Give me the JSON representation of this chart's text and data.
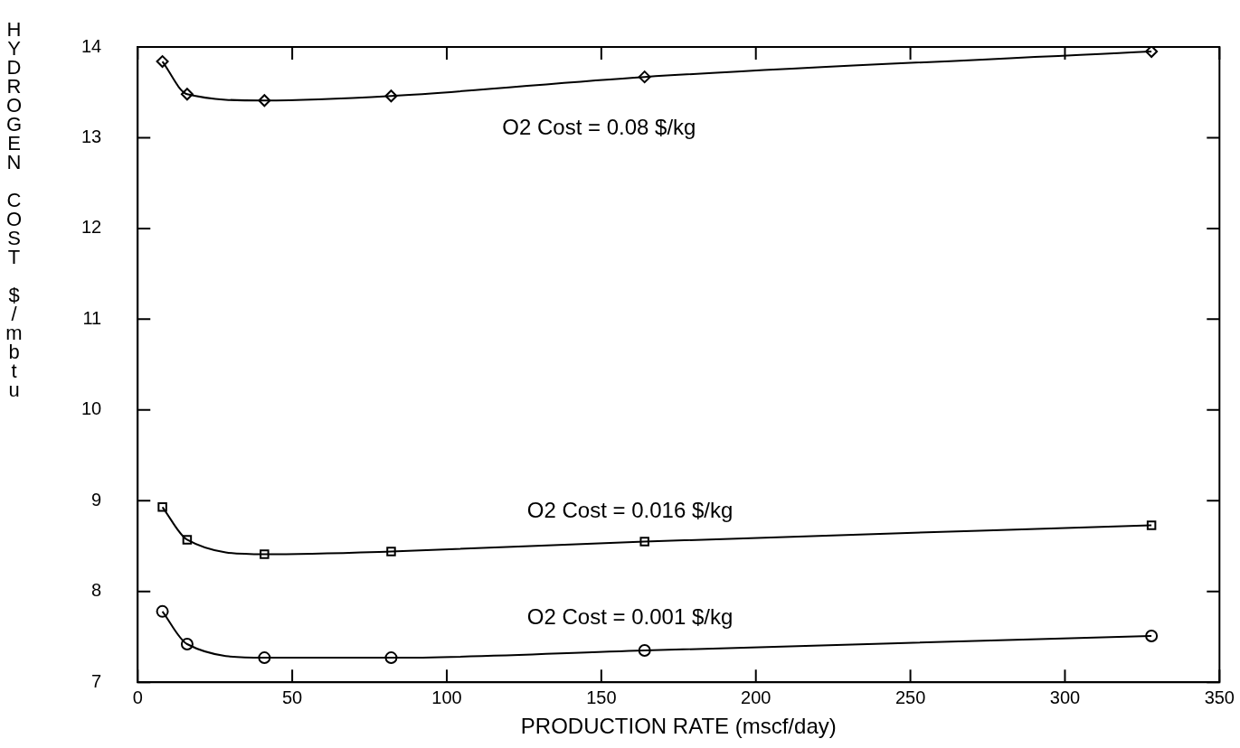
{
  "chart_data": {
    "type": "line",
    "xlabel": "PRODUCTION RATE (mscf/day)",
    "ylabel": "HYDROGEN COST $/mbtu",
    "series": [
      {
        "name": "O2 Cost = 0.08 $/kg",
        "color": "#000000",
        "marker": "diamond",
        "x": [
          8,
          16,
          41,
          82,
          164,
          328
        ],
        "values": [
          13.84,
          13.48,
          13.41,
          13.46,
          13.67,
          13.95
        ]
      },
      {
        "name": "O2 Cost = 0.016 $/kg",
        "color": "#000000",
        "marker": "square",
        "x": [
          8,
          16,
          41,
          82,
          164,
          328
        ],
        "values": [
          8.93,
          8.57,
          8.41,
          8.44,
          8.55,
          8.73
        ]
      },
      {
        "name": "O2 Cost = 0.001 $/kg",
        "color": "#000000",
        "marker": "circle",
        "x": [
          8,
          16,
          41,
          82,
          164,
          328
        ],
        "values": [
          7.78,
          7.42,
          7.27,
          7.27,
          7.35,
          7.51
        ]
      }
    ],
    "xlim": [
      0,
      350
    ],
    "xticks": [
      0,
      50,
      100,
      150,
      200,
      250,
      300,
      350
    ],
    "ylim": [
      7,
      14
    ],
    "yticks": [
      7,
      8,
      9,
      10,
      11,
      12,
      13,
      14
    ],
    "grid": false,
    "legend": false,
    "line_style": "solid"
  }
}
